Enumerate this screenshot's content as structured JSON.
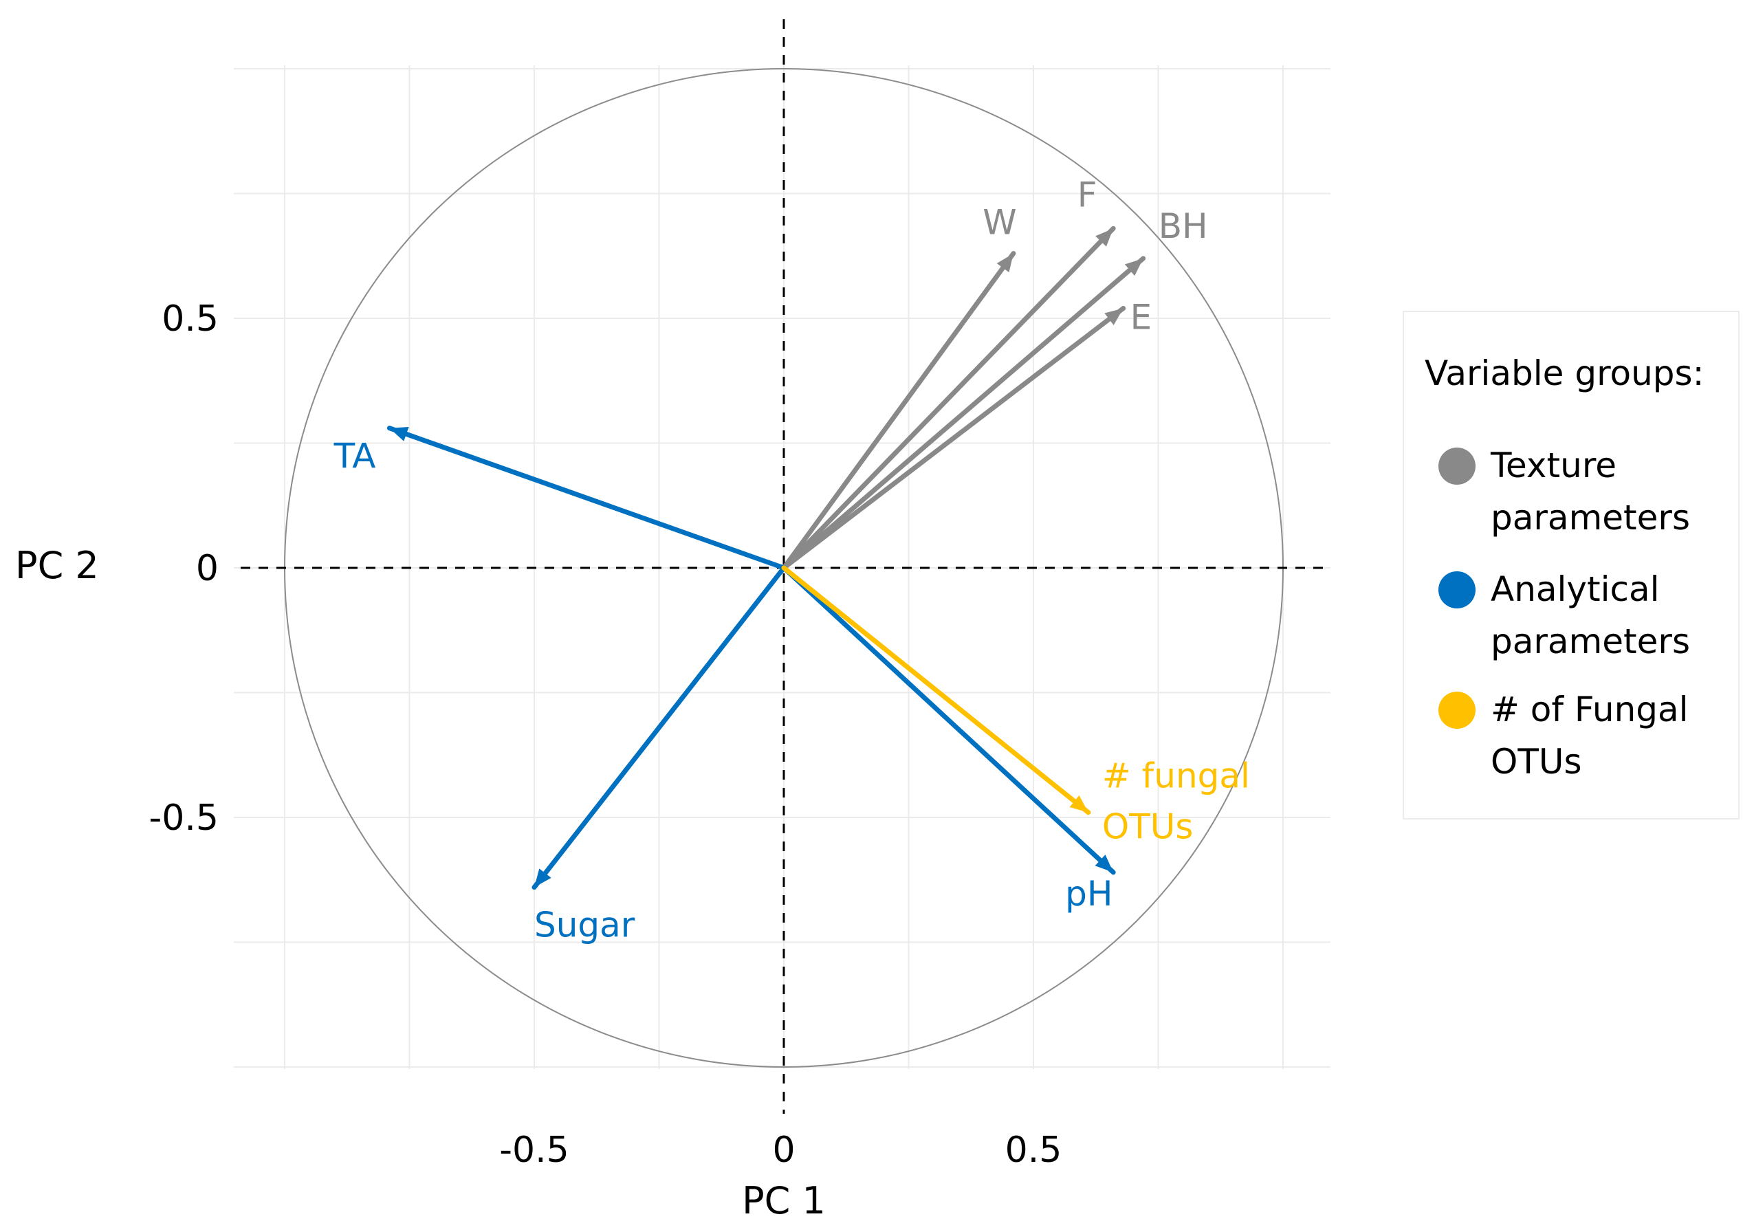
{
  "chart_data": {
    "type": "scatter",
    "subtype": "pca-correlation-circle",
    "xlabel": "PC 1",
    "ylabel": "PC 2",
    "xlim": [
      -1.1,
      1.1
    ],
    "ylim": [
      -1.1,
      1.1
    ],
    "x_ticks": [
      {
        "value": -0.5,
        "label": "-0.5"
      },
      {
        "value": 0,
        "label": "0"
      },
      {
        "value": 0.5,
        "label": "0.5"
      }
    ],
    "y_ticks": [
      {
        "value": 0.5,
        "label": "0.5"
      },
      {
        "value": 0,
        "label": "0"
      },
      {
        "value": -0.5,
        "label": "-0.5"
      }
    ],
    "grid": true,
    "unit_circle": true,
    "zero_lines": "dashed",
    "series": [
      {
        "name": "W",
        "group": "texture",
        "x": 0.46,
        "y": 0.63
      },
      {
        "name": "F",
        "group": "texture",
        "x": 0.66,
        "y": 0.68
      },
      {
        "name": "BH",
        "group": "texture",
        "x": 0.72,
        "y": 0.62
      },
      {
        "name": "E",
        "group": "texture",
        "x": 0.68,
        "y": 0.52
      },
      {
        "name": "TA",
        "group": "analytical",
        "x": -0.79,
        "y": 0.28
      },
      {
        "name": "Sugar",
        "group": "analytical",
        "x": -0.5,
        "y": -0.64
      },
      {
        "name": "pH",
        "group": "analytical",
        "x": 0.66,
        "y": -0.61
      },
      {
        "name": "# fungal\nOTUs",
        "group": "fungal",
        "x": 0.61,
        "y": -0.49
      }
    ],
    "legend": {
      "title": "Variable groups:",
      "position": "right",
      "items": [
        {
          "key": "texture",
          "label": "Texture\nparameters",
          "color": "#898989"
        },
        {
          "key": "analytical",
          "label": "Analytical\nparameters",
          "color": "#0070c0"
        },
        {
          "key": "fungal",
          "label": "# of Fungal\nOTUs",
          "color": "#ffc000"
        }
      ]
    }
  }
}
